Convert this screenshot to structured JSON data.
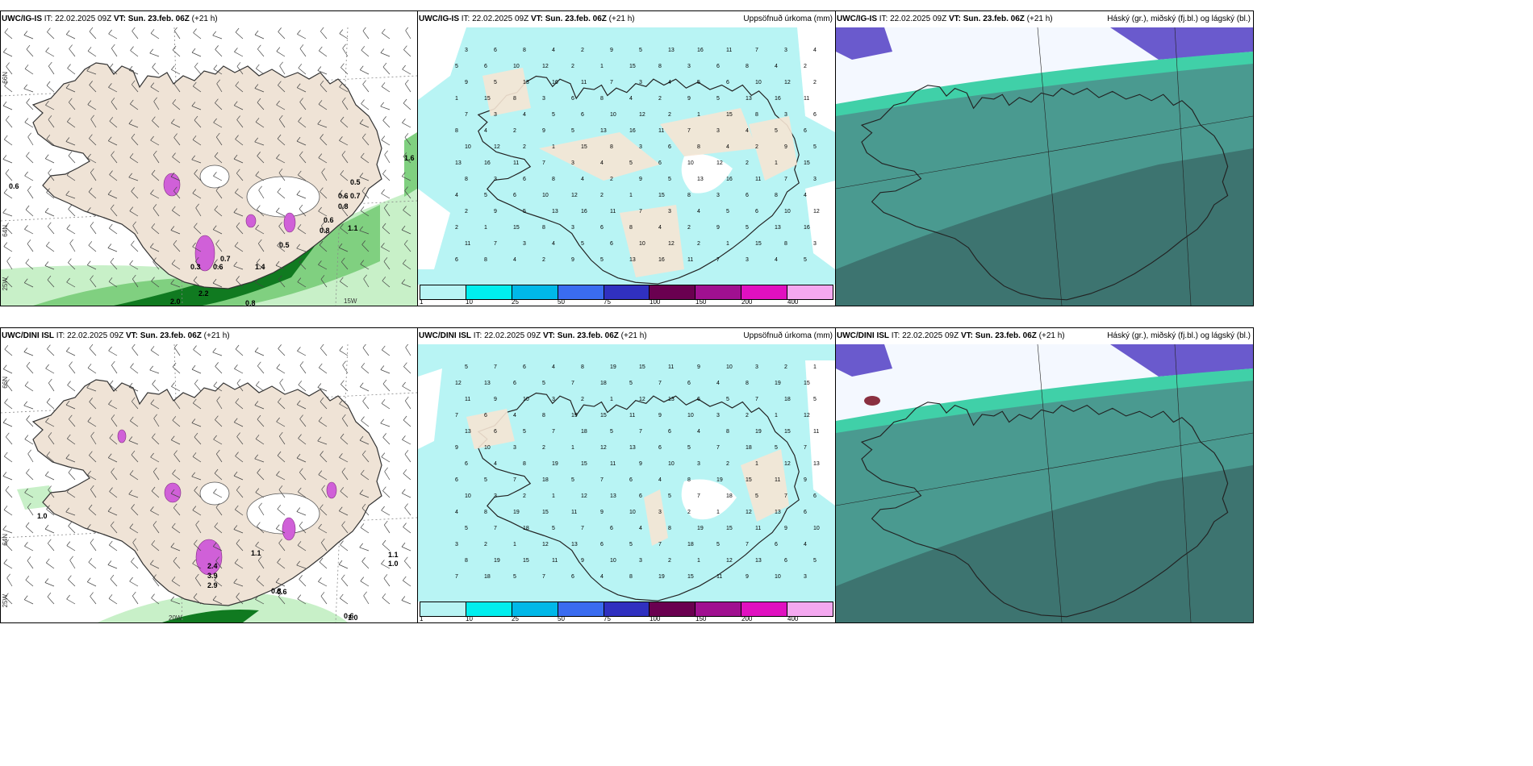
{
  "panels": {
    "top_left": {
      "model": "UWC/IG-IS",
      "it_label": "IT:",
      "it_value": "22.02.2025 09Z",
      "vt_label": "VT:",
      "vt_value": "Sun. 23.feb. 06Z",
      "lead": "(+21 h)",
      "right_title": ""
    },
    "top_mid": {
      "model": "UWC/IG-IS",
      "it_label": "IT:",
      "it_value": "22.02.2025 09Z",
      "vt_label": "VT:",
      "vt_value": "Sun. 23.feb. 06Z",
      "lead": "(+21 h)",
      "right_title": "Uppsöfnuð úrkoma (mm)"
    },
    "top_right": {
      "model": "UWC/IG-IS",
      "it_label": "IT:",
      "it_value": "22.02.2025 09Z",
      "vt_label": "VT:",
      "vt_value": "Sun. 23.feb. 06Z",
      "lead": "(+21 h)",
      "right_title": "Háský (gr.), miðský (fj.bl.) og lágský (bl.)"
    },
    "bottom_left": {
      "model": "UWC/DINI ISL",
      "it_label": "IT:",
      "it_value": "22.02.2025 09Z",
      "vt_label": "VT:",
      "vt_value": "Sun. 23.feb. 06Z",
      "lead": "(+21 h)",
      "right_title": ""
    },
    "bottom_mid": {
      "model": "UWC/DINI ISL",
      "it_label": "IT:",
      "it_value": "22.02.2025 09Z",
      "vt_label": "VT:",
      "vt_value": "Sun. 23.feb. 06Z",
      "lead": "(+21 h)",
      "right_title": "Uppsöfnuð úrkoma (mm)"
    },
    "bottom_right": {
      "model": "UWC/DINI ISL",
      "it_label": "IT:",
      "it_value": "22.02.2025 09Z",
      "vt_label": "VT:",
      "vt_value": "Sun. 23.feb. 06Z",
      "lead": "(+21 h)",
      "right_title": "Háský (gr.), miðský (fj.bl.) og lágský (bl.)"
    }
  },
  "precip_colorbar": {
    "ticks": [
      "1",
      "10",
      "25",
      "50",
      "75",
      "100",
      "150",
      "200",
      "400"
    ],
    "colors": [
      "#b8f4f4",
      "#00eeee",
      "#00b8e8",
      "#3a6cf0",
      "#3030c0",
      "#6a0050",
      "#a01090",
      "#e010c0",
      "#f4a8f0"
    ]
  },
  "axis_labels": {
    "lat_66": "66N",
    "lat_64": "64N",
    "lat_63": "63N",
    "lon_25": "25W",
    "lon_20": "20W",
    "lon_15": "15W"
  },
  "wind_panel_values": {
    "top": [
      "0.6",
      "1.6",
      "0.5",
      "0.6",
      "0.8",
      "0.7",
      "0.6",
      "0.8",
      "1.1",
      "0.5",
      "0.7",
      "0.6",
      "0.3",
      "2.2",
      "2.0",
      "1.7",
      "0.8",
      "1.4"
    ],
    "bottom": [
      "1.0",
      "1.1",
      "1.0",
      "1.1",
      "2.4",
      "3.9",
      "2.9",
      "0.6",
      "0.8",
      "0.6",
      "1.0"
    ]
  },
  "precip_panel_values": {
    "top": [
      "3",
      "6",
      "8",
      "4",
      "2",
      "9",
      "5",
      "13",
      "16",
      "11",
      "7",
      "3",
      "4",
      "5",
      "6",
      "10",
      "12",
      "2",
      "1",
      "15",
      "8"
    ],
    "bottom": [
      "5",
      "7",
      "6",
      "4",
      "8",
      "19",
      "15",
      "11",
      "9",
      "10",
      "3",
      "2",
      "1",
      "12",
      "13",
      "6",
      "5",
      "7",
      "18"
    ]
  },
  "colors": {
    "land": "#efe3d6",
    "sea": "#ffffff",
    "precip_light": "#b8f4f4",
    "green_light": "#c8f0c8",
    "green_mid": "#80d080",
    "green_dark": "#107a20",
    "purple": "#d060d8",
    "cloud_teal": "#4a9a90",
    "cloud_dark": "#3a6a68",
    "cloud_violet": "#6a5acd",
    "cloud_mint": "#40d0a8"
  }
}
